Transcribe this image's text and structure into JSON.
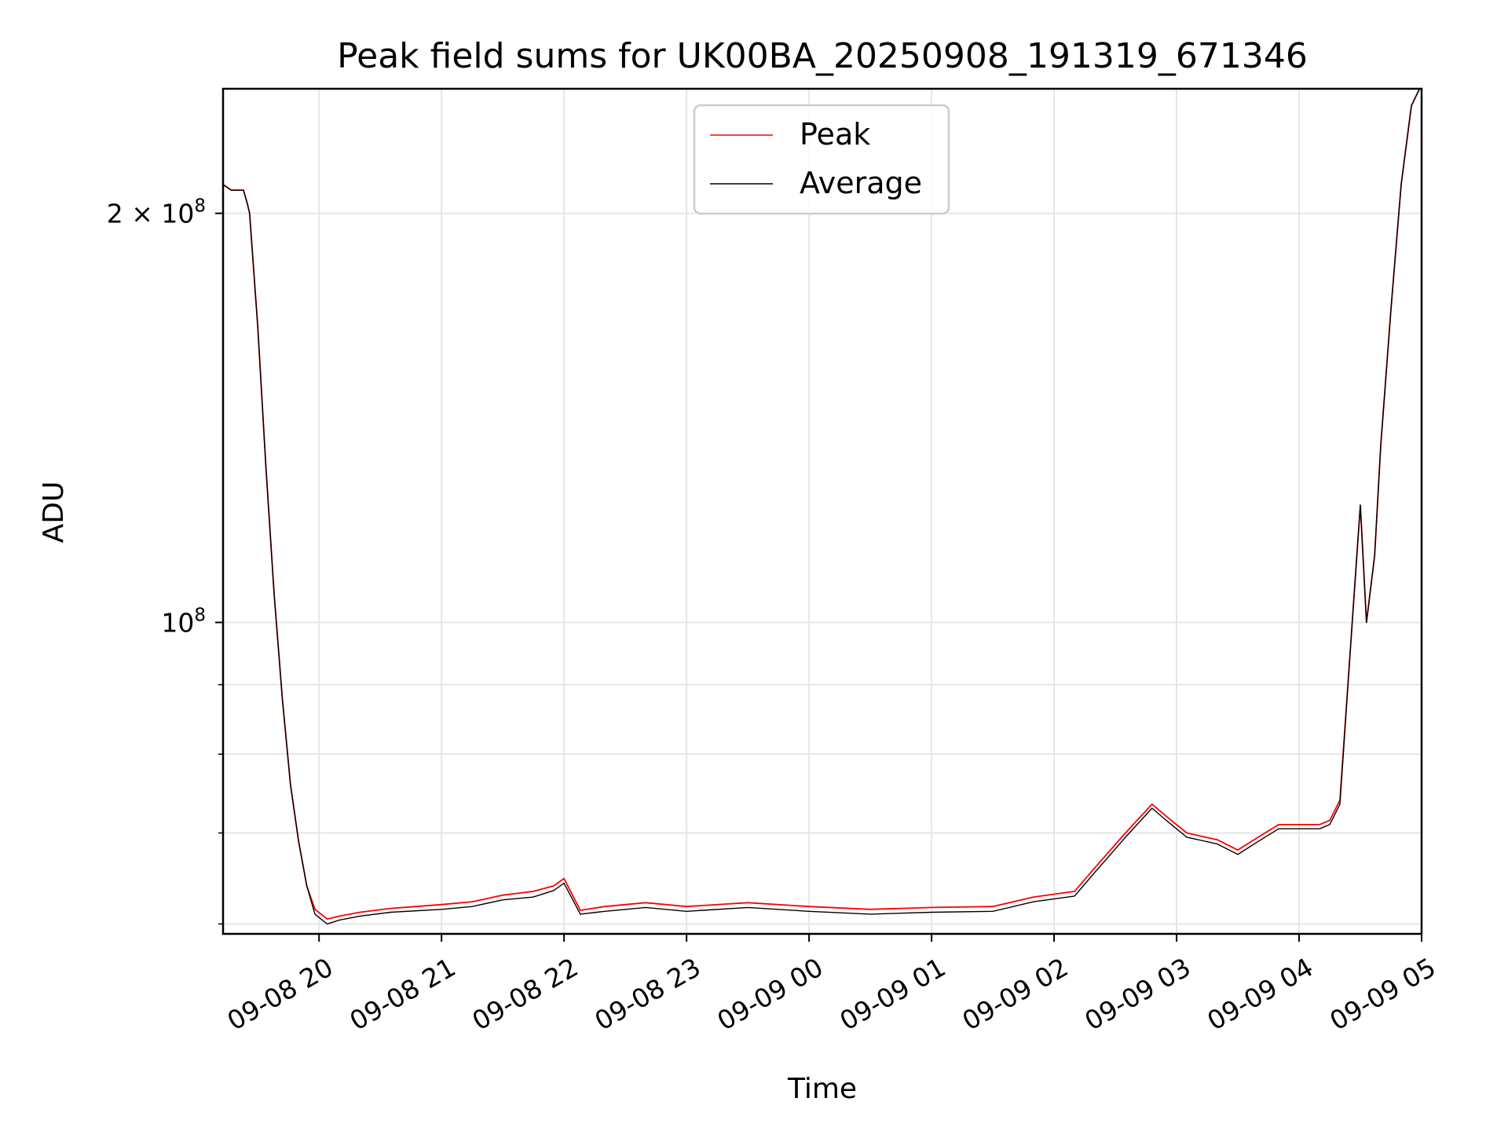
{
  "chart_data": {
    "type": "line",
    "title": "Peak field sums for UK00BA_20250908_191319_671346",
    "xlabel": "Time",
    "ylabel": "ADU",
    "y_scale": "log",
    "grid": true,
    "legend_position": "upper center",
    "x_ticks": [
      "09-08 20",
      "09-08 21",
      "09-08 22",
      "09-08 23",
      "09-09 00",
      "09-09 01",
      "09-09 02",
      "09-09 03",
      "09-09 04",
      "09-09 05"
    ],
    "y_ticks": [
      "2 × 10^8",
      "10^8"
    ],
    "y_tick_values": [
      200000000,
      100000000
    ],
    "xlim": [
      "2025-09-08 19:13",
      "2025-09-09 05:00"
    ],
    "ylim": [
      59000000,
      247000000
    ],
    "series": [
      {
        "name": "Peak",
        "color": "#ff0000",
        "x": [
          "2025-09-08 19:13",
          "2025-09-08 19:17",
          "2025-09-08 19:23",
          "2025-09-08 19:25",
          "2025-09-08 19:26",
          "2025-09-08 19:30",
          "2025-09-08 19:34",
          "2025-09-08 19:38",
          "2025-09-08 19:42",
          "2025-09-08 19:46",
          "2025-09-08 19:50",
          "2025-09-08 19:54",
          "2025-09-08 19:58",
          "2025-09-08 20:04",
          "2025-09-08 20:10",
          "2025-09-08 20:20",
          "2025-09-08 20:35",
          "2025-09-08 21:00",
          "2025-09-08 21:15",
          "2025-09-08 21:30",
          "2025-09-08 21:45",
          "2025-09-08 21:55",
          "2025-09-08 22:00",
          "2025-09-08 22:08",
          "2025-09-08 22:20",
          "2025-09-08 22:40",
          "2025-09-08 23:00",
          "2025-09-08 23:30",
          "2025-09-09 00:00",
          "2025-09-09 00:30",
          "2025-09-09 01:00",
          "2025-09-09 01:30",
          "2025-09-09 01:50",
          "2025-09-09 02:10",
          "2025-09-09 02:20",
          "2025-09-09 02:35",
          "2025-09-09 02:48",
          "2025-09-09 02:55",
          "2025-09-09 03:05",
          "2025-09-09 03:20",
          "2025-09-09 03:30",
          "2025-09-09 03:40",
          "2025-09-09 03:50",
          "2025-09-09 04:10",
          "2025-09-09 04:15",
          "2025-09-09 04:20",
          "2025-09-09 04:25",
          "2025-09-09 04:27",
          "2025-09-09 04:30",
          "2025-09-09 04:33",
          "2025-09-09 04:37",
          "2025-09-09 04:40",
          "2025-09-09 04:45",
          "2025-09-09 04:50",
          "2025-09-09 04:55",
          "2025-09-09 04:59"
        ],
        "y": [
          210000000,
          208000000,
          208000000,
          203000000,
          200000000,
          165000000,
          130000000,
          105000000,
          88000000,
          76000000,
          69000000,
          64000000,
          61500000,
          60500000,
          60800000,
          61200000,
          61600000,
          62000000,
          62300000,
          63000000,
          63400000,
          64000000,
          64800000,
          61400000,
          61800000,
          62200000,
          61800000,
          62200000,
          61800000,
          61500000,
          61700000,
          61800000,
          62800000,
          63400000,
          66000000,
          70000000,
          73500000,
          72000000,
          70000000,
          69200000,
          68000000,
          69500000,
          71000000,
          71000000,
          71500000,
          74000000,
          95000000,
          105000000,
          122000000,
          100000000,
          112000000,
          135000000,
          170000000,
          210000000,
          240000000,
          247000000
        ]
      },
      {
        "name": "Average",
        "color": "#000000",
        "x": [
          "2025-09-08 19:13",
          "2025-09-08 19:17",
          "2025-09-08 19:23",
          "2025-09-08 19:25",
          "2025-09-08 19:26",
          "2025-09-08 19:30",
          "2025-09-08 19:34",
          "2025-09-08 19:38",
          "2025-09-08 19:42",
          "2025-09-08 19:46",
          "2025-09-08 19:50",
          "2025-09-08 19:54",
          "2025-09-08 19:58",
          "2025-09-08 20:04",
          "2025-09-08 20:10",
          "2025-09-08 20:20",
          "2025-09-08 20:35",
          "2025-09-08 21:00",
          "2025-09-08 21:15",
          "2025-09-08 21:30",
          "2025-09-08 21:45",
          "2025-09-08 21:55",
          "2025-09-08 22:00",
          "2025-09-08 22:08",
          "2025-09-08 22:20",
          "2025-09-08 22:40",
          "2025-09-08 23:00",
          "2025-09-08 23:30",
          "2025-09-09 00:00",
          "2025-09-09 00:30",
          "2025-09-09 01:00",
          "2025-09-09 01:30",
          "2025-09-09 01:50",
          "2025-09-09 02:10",
          "2025-09-09 02:20",
          "2025-09-09 02:35",
          "2025-09-09 02:48",
          "2025-09-09 02:55",
          "2025-09-09 03:05",
          "2025-09-09 03:20",
          "2025-09-09 03:30",
          "2025-09-09 03:40",
          "2025-09-09 03:50",
          "2025-09-09 04:10",
          "2025-09-09 04:15",
          "2025-09-09 04:20",
          "2025-09-09 04:25",
          "2025-09-09 04:27",
          "2025-09-09 04:30",
          "2025-09-09 04:33",
          "2025-09-09 04:37",
          "2025-09-09 04:40",
          "2025-09-09 04:45",
          "2025-09-09 04:50",
          "2025-09-09 04:55",
          "2025-09-09 04:59"
        ],
        "y": [
          210000000,
          208000000,
          208000000,
          203000000,
          200000000,
          165000000,
          130000000,
          105000000,
          88000000,
          76000000,
          69000000,
          64000000,
          61000000,
          60000000,
          60400000,
          60800000,
          61200000,
          61500000,
          61800000,
          62500000,
          62800000,
          63500000,
          64300000,
          61000000,
          61300000,
          61700000,
          61300000,
          61700000,
          61300000,
          61000000,
          61200000,
          61300000,
          62300000,
          62900000,
          65500000,
          69500000,
          73000000,
          71500000,
          69500000,
          68700000,
          67500000,
          69000000,
          70500000,
          70500000,
          71000000,
          73500000,
          95000000,
          105000000,
          122000000,
          100000000,
          112000000,
          135000000,
          170000000,
          210000000,
          240000000,
          247000000
        ]
      }
    ]
  }
}
